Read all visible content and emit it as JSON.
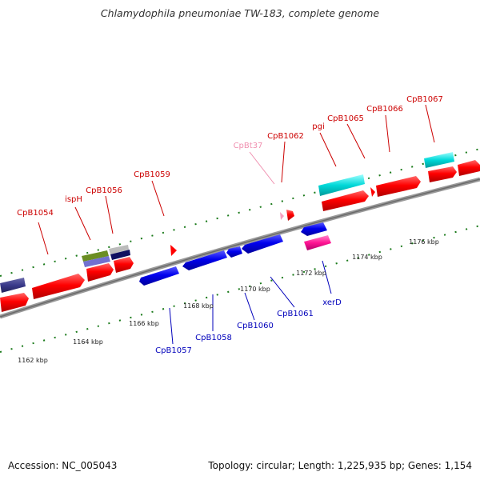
{
  "title": "Chlamydophila pneumoniae TW-183, complete genome",
  "footer": {
    "accession": "Accession: NC_005043",
    "stats": "Topology: circular; Length: 1,225,935 bp; Genes: 1,154"
  },
  "colors": {
    "forward_label": "#cc0000",
    "reverse_label": "#0000bb",
    "trna_label": "#f090b0",
    "forward_gene": "#ff0000",
    "reverse_gene": "#0000ee",
    "backbone": "#888888",
    "ticks": "#1a7a1a"
  },
  "tick_labels": [
    "1162 kbp",
    "1164 kbp",
    "1166 kbp",
    "1168 kbp",
    "1170 kbp",
    "1172 kbp",
    "1174 kbp",
    "1176 kbp"
  ],
  "forward_labels": [
    "CpB1054",
    "ispH",
    "CpB1056",
    "CpB1059",
    "CpBt37",
    "CpB1062",
    "pgi",
    "CpB1065",
    "CpB1066",
    "CpB1067"
  ],
  "reverse_labels": [
    "CpB1057",
    "CpB1058",
    "CpB1060",
    "CpB1061",
    "xerD"
  ]
}
